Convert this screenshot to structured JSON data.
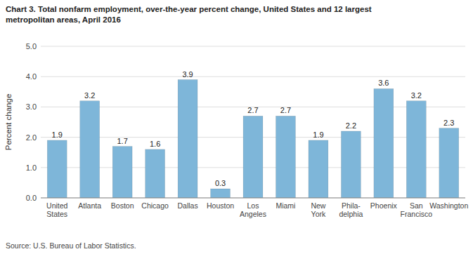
{
  "chart_data": {
    "type": "bar",
    "title": "Chart 3. Total nonfarm employment, over-the-year percent change, United States and 12 largest\nmetropolitan areas, April 2016",
    "ylabel": "Percent change",
    "source": "Source: U.S. Bureau of Labor Statistics.",
    "categories": [
      "United\nStates",
      "Atlanta",
      "Boston",
      "Chicago",
      "Dallas",
      "Houston",
      "Los\nAngeles",
      "Miami",
      "New\nYork",
      "Phila-\ndelphia",
      "Phoenix",
      "San\nFrancisco",
      "Washington"
    ],
    "values": [
      1.9,
      3.2,
      1.7,
      1.6,
      3.9,
      0.3,
      2.7,
      2.7,
      1.9,
      2.2,
      3.6,
      3.2,
      2.3
    ],
    "color": "#7EB6D9",
    "ylim": [
      0,
      5.0
    ],
    "yticks": [
      {
        "value": 0.0,
        "label": "0.0"
      },
      {
        "value": 1.0,
        "label": "1.0"
      },
      {
        "value": 2.0,
        "label": "2.0"
      },
      {
        "value": 3.0,
        "label": "3.0"
      },
      {
        "value": 4.0,
        "label": "4.0"
      },
      {
        "value": 5.0,
        "label": "5.0"
      }
    ],
    "grid": true,
    "data_labels": true
  }
}
